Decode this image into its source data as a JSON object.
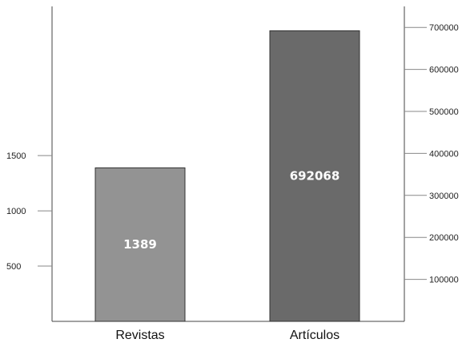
{
  "chart_data": {
    "type": "bar",
    "categories": [
      "Revistas",
      "Artículos"
    ],
    "series": [
      {
        "category": "Revistas",
        "value": 1389,
        "axis": "left",
        "color": "#939393",
        "label": "1389"
      },
      {
        "category": "Artículos",
        "value": 692068,
        "axis": "right",
        "color": "#6a6a6a",
        "label": "692068"
      }
    ],
    "left_axis": {
      "ticks": [
        500,
        1000,
        1500
      ],
      "ylim": [
        0,
        2850
      ]
    },
    "right_axis": {
      "ticks": [
        100000,
        200000,
        300000,
        400000,
        500000,
        600000,
        700000
      ],
      "ylim": [
        0,
        750000
      ]
    },
    "grid": false,
    "legend": "none"
  }
}
